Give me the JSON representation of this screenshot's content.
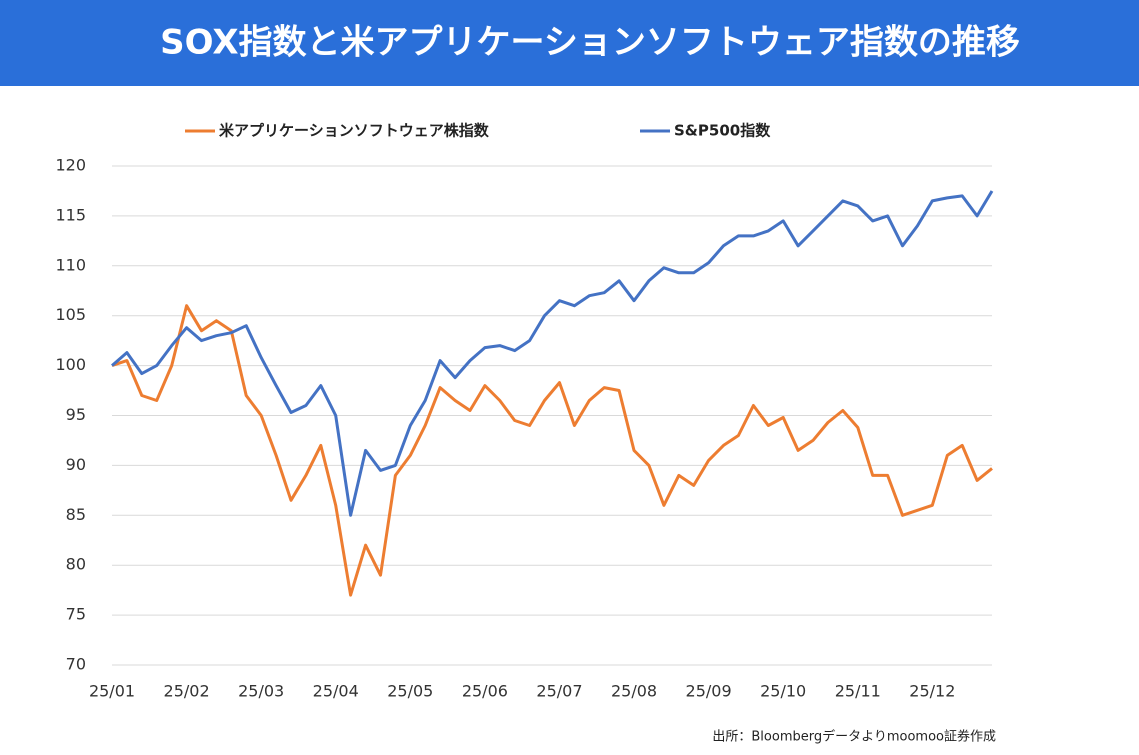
{
  "header": {
    "title": "SOX指数と米アプリケーションソフトウェア指数の推移"
  },
  "chart_data": {
    "type": "line",
    "categories": [
      "25/01",
      null,
      null,
      null,
      null,
      "25/02",
      null,
      null,
      null,
      null,
      "25/03",
      null,
      null,
      null,
      null,
      "25/04",
      null,
      null,
      null,
      null,
      "25/05",
      null,
      null,
      null,
      null,
      "25/06",
      null,
      null,
      null,
      null,
      "25/07",
      null,
      null,
      null,
      null,
      "25/08",
      null,
      null,
      null,
      null,
      "25/09",
      null,
      null,
      null,
      null,
      "25/10",
      null,
      null,
      null,
      null,
      "25/11",
      null,
      null,
      null,
      null,
      "25/12",
      null,
      null,
      null,
      null
    ],
    "series": [
      {
        "name": "米アプリケーションソフトウェア株指数",
        "color": "#ed7d31",
        "values": [
          100,
          100.5,
          97,
          96.5,
          100,
          106,
          103.5,
          104.5,
          103.5,
          97,
          95,
          91,
          86.5,
          89,
          92,
          86,
          77,
          82,
          79,
          89,
          91,
          94,
          97.8,
          96.5,
          95.5,
          98,
          96.5,
          94.5,
          94,
          96.5,
          98.3,
          94,
          96.5,
          97.8,
          97.5,
          91.5,
          90,
          86,
          89,
          88,
          90.5,
          92,
          93,
          96,
          94,
          94.8,
          91.5,
          92.5,
          94.3,
          95.5,
          93.8,
          89,
          89,
          85,
          85.5,
          86,
          91,
          92,
          88.5,
          89.7
        ]
      },
      {
        "name": "S&P500指数",
        "color": "#4472c4",
        "values": [
          100,
          101.3,
          99.2,
          100,
          102,
          103.8,
          102.5,
          103,
          103.3,
          104,
          100.8,
          98,
          95.3,
          96,
          98,
          95,
          85,
          91.5,
          89.5,
          90,
          94,
          96.5,
          100.5,
          98.8,
          100.5,
          101.8,
          102,
          101.5,
          102.5,
          105,
          106.5,
          106,
          107,
          107.3,
          108.5,
          106.5,
          108.5,
          109.8,
          109.3,
          109.3,
          110.3,
          112,
          113,
          113,
          113.5,
          114.5,
          112,
          113.5,
          115,
          116.5,
          116,
          114.5,
          115,
          112,
          114,
          116.5,
          116.8,
          117,
          115,
          117.5
        ]
      }
    ],
    "ylim": [
      70,
      120
    ],
    "yticks": [
      70,
      75,
      80,
      85,
      90,
      95,
      100,
      105,
      110,
      115,
      120
    ],
    "grid": true,
    "source": "出所：Bloombergデータよりmoomoo証券作成"
  }
}
